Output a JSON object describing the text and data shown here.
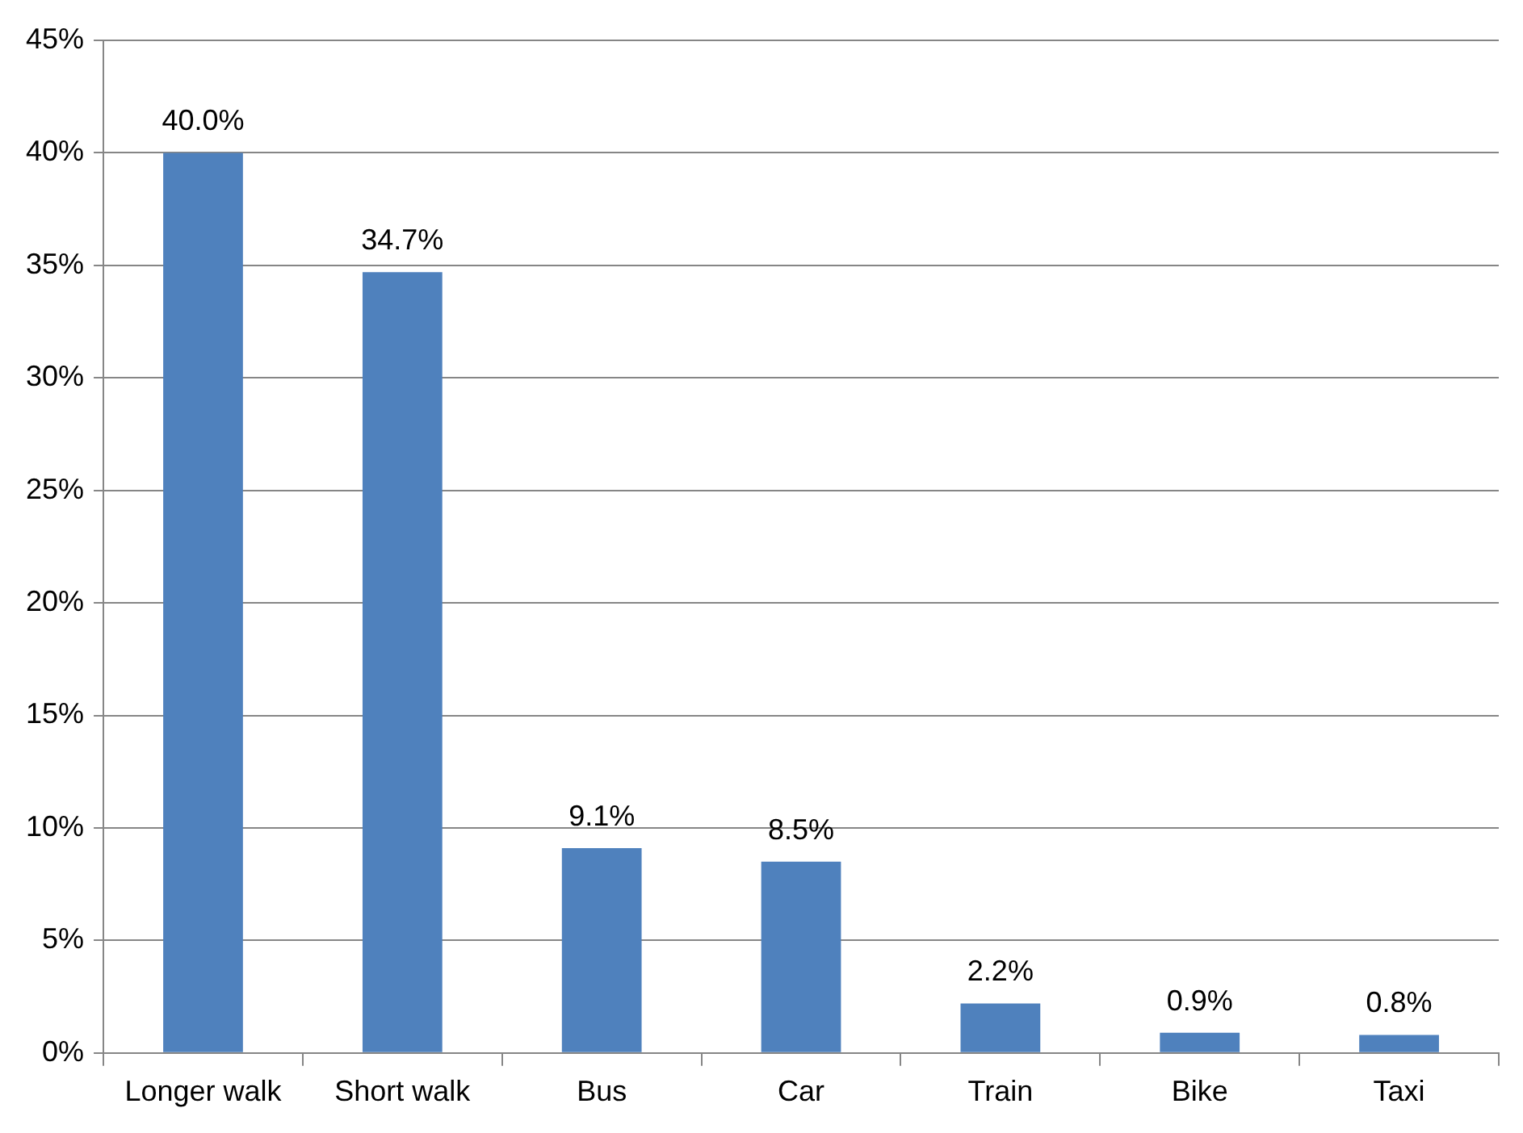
{
  "chart_data": {
    "type": "bar",
    "categories": [
      "Longer walk",
      "Short walk",
      "Bus",
      "Car",
      "Train",
      "Bike",
      "Taxi"
    ],
    "values": [
      40.0,
      34.7,
      9.1,
      8.5,
      2.2,
      0.9,
      0.8
    ],
    "value_labels": [
      "40.0%",
      "34.7%",
      "9.1%",
      "8.5%",
      "2.2%",
      "0.9%",
      "0.8%"
    ],
    "color": "#4f81bd",
    "ylim": [
      0,
      45
    ],
    "yticks": [
      {
        "value": 0,
        "label": "0%"
      },
      {
        "value": 5,
        "label": "5%"
      },
      {
        "value": 10,
        "label": "10%"
      },
      {
        "value": 15,
        "label": "15%"
      },
      {
        "value": 20,
        "label": "20%"
      },
      {
        "value": 25,
        "label": "25%"
      },
      {
        "value": 30,
        "label": "30%"
      },
      {
        "value": 35,
        "label": "35%"
      },
      {
        "value": 40,
        "label": "40%"
      },
      {
        "value": 45,
        "label": "45%"
      }
    ],
    "grid": "y"
  }
}
